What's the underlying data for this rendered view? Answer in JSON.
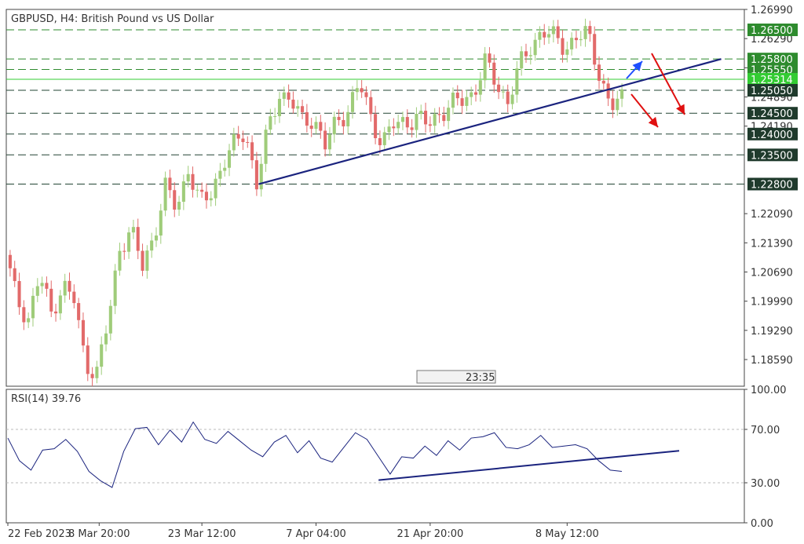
{
  "chart_data": {
    "type": "candlestick",
    "symbol_title": "GBPUSD, H4:  British Pound vs US Dollar",
    "price_axis": {
      "ylim": [
        1.1795,
        1.2699
      ],
      "tick_labels": [
        "1.26990",
        "1.26290",
        "1.25590",
        "1.24890",
        "1.24190",
        "1.22090",
        "1.21390",
        "1.20690",
        "1.19990",
        "1.19290",
        "1.18590"
      ]
    },
    "levels": [
      {
        "value": 1.265,
        "label": "1.26500",
        "style": "dashed",
        "color": "#2e8b2e",
        "tag_color": "#2e8b2e"
      },
      {
        "value": 1.258,
        "label": "1.25800",
        "style": "dashed",
        "color": "#2e8b2e",
        "tag_color": "#2e8b2e"
      },
      {
        "value": 1.2555,
        "label": "1.25550",
        "style": "dashed",
        "color": "#2e8b2e",
        "tag_color": "#2e8b2e"
      },
      {
        "value": 1.25314,
        "label": "1.25314",
        "style": "solid",
        "color": "#33cc33",
        "tag_color": "#33cc33"
      },
      {
        "value": 1.2505,
        "label": "1.25050",
        "style": "dashed",
        "color": "#224433",
        "tag_color": "#1f3a2c"
      },
      {
        "value": 1.245,
        "label": "1.24500",
        "style": "dashed",
        "color": "#224433",
        "tag_color": "#1f3a2c"
      },
      {
        "value": 1.24,
        "label": "1.24000",
        "style": "dashed",
        "color": "#224433",
        "tag_color": "#1f3a2c"
      },
      {
        "value": 1.235,
        "label": "1.23500",
        "style": "dashed",
        "color": "#224433",
        "tag_color": "#1f3a2c"
      },
      {
        "value": 1.228,
        "label": "1.22800",
        "style": "dashed",
        "color": "#224433",
        "tag_color": "#1f3a2c"
      }
    ],
    "time_axis": {
      "tick_labels": [
        "22 Feb 2023",
        "8 Mar 20:00",
        "23 Mar 12:00",
        "7 Apr 04:00",
        "21 Apr 20:00",
        "8 May 12:00"
      ]
    },
    "close_path": [
      {
        "t": "22 Feb 2023",
        "close": 1.211
      },
      {
        "t": "24 Feb 2023",
        "close": 1.2
      },
      {
        "t": "27 Feb 2023",
        "close": 1.196
      },
      {
        "t": "1 Mar 2023",
        "close": 1.206
      },
      {
        "t": "3 Mar 2023",
        "close": 1.197
      },
      {
        "t": "6 Mar 2023",
        "close": 1.204
      },
      {
        "t": "7 Mar 2023",
        "close": 1.2
      },
      {
        "t": "8 Mar 00:00",
        "close": 1.185
      },
      {
        "t": "8 Mar 20:00",
        "close": 1.183
      },
      {
        "t": "10 Mar 2023",
        "close": 1.195
      },
      {
        "t": "13 Mar 2023",
        "close": 1.213
      },
      {
        "t": "14 Mar 2023",
        "close": 1.217
      },
      {
        "t": "16 Mar 2023",
        "close": 1.208
      },
      {
        "t": "17 Mar 2023",
        "close": 1.216
      },
      {
        "t": "20 Mar 2023",
        "close": 1.227
      },
      {
        "t": "21 Mar 2023",
        "close": 1.222
      },
      {
        "t": "22 Mar 2023",
        "close": 1.232
      },
      {
        "t": "23 Mar 12:00",
        "close": 1.223
      },
      {
        "t": "24 Mar 2023",
        "close": 1.226
      },
      {
        "t": "27 Mar 2023",
        "close": 1.233
      },
      {
        "t": "29 Mar 2023",
        "close": 1.237
      },
      {
        "t": "30 Mar 2023",
        "close": 1.241
      },
      {
        "t": "31 Mar 2023",
        "close": 1.228
      },
      {
        "t": "3 Apr 2023",
        "close": 1.241
      },
      {
        "t": "4 Apr 2023",
        "close": 1.25
      },
      {
        "t": "5 Apr 2023",
        "close": 1.248
      },
      {
        "t": "6 Apr 2023",
        "close": 1.243
      },
      {
        "t": "7 Apr 04:00",
        "close": 1.244
      },
      {
        "t": "10 Apr 2023",
        "close": 1.237
      },
      {
        "t": "11 Apr 2023",
        "close": 1.243
      },
      {
        "t": "12 Apr 2023",
        "close": 1.246
      },
      {
        "t": "13 Apr 2023",
        "close": 1.252
      },
      {
        "t": "14 Apr 2023",
        "close": 1.244
      },
      {
        "t": "17 Apr 2023",
        "close": 1.238
      },
      {
        "t": "18 Apr 2023",
        "close": 1.242
      },
      {
        "t": "19 Apr 2023",
        "close": 1.243
      },
      {
        "t": "20 Apr 2023",
        "close": 1.244
      },
      {
        "t": "21 Apr 20:00",
        "close": 1.242
      },
      {
        "t": "24 Apr 2023",
        "close": 1.245
      },
      {
        "t": "25 Apr 2023",
        "close": 1.247
      },
      {
        "t": "26 Apr 2023",
        "close": 1.248
      },
      {
        "t": "27 Apr 2023",
        "close": 1.25
      },
      {
        "t": "28 Apr 2023",
        "close": 1.257
      },
      {
        "t": "1 May 2023",
        "close": 1.252
      },
      {
        "t": "2 May 2023",
        "close": 1.248
      },
      {
        "t": "3 May 2023",
        "close": 1.256
      },
      {
        "t": "4 May 2023",
        "close": 1.261
      },
      {
        "t": "5 May 2023",
        "close": 1.265
      },
      {
        "t": "8 May 00:00",
        "close": 1.263
      },
      {
        "t": "8 May 12:00",
        "close": 1.261
      },
      {
        "t": "9 May 2023",
        "close": 1.263
      },
      {
        "t": "10 May 2023",
        "close": 1.264
      },
      {
        "t": "11 May 2023",
        "close": 1.255
      },
      {
        "t": "12 May 2023",
        "close": 1.246
      },
      {
        "t": "12 May 16:00",
        "close": 1.2485
      }
    ],
    "trendline": {
      "start": {
        "t": "31 Mar 2023",
        "price": 1.228
      },
      "end": {
        "t": "15 May 2023",
        "price": 1.258
      },
      "color": "#1a237e"
    },
    "arrows": [
      {
        "direction": "up",
        "color": "#1e4fff"
      },
      {
        "direction": "down",
        "color": "#e01010"
      },
      {
        "direction": "down",
        "color": "#e01010"
      }
    ],
    "scroll_marker": "23:35",
    "rsi": {
      "label": "RSI(14) 39.76",
      "ylim": [
        0,
        100
      ],
      "tick_labels": [
        "100.00",
        "70.00",
        "30.00",
        "0.00"
      ],
      "levels": [
        70,
        30
      ],
      "values": [
        62,
        48,
        38,
        56,
        54,
        64,
        52,
        40,
        30,
        28,
        52,
        72,
        70,
        60,
        68,
        62,
        74,
        64,
        58,
        70,
        60,
        56,
        48,
        62,
        64,
        54,
        60,
        50,
        44,
        58,
        66,
        64,
        48,
        38,
        48,
        50,
        56,
        52,
        60,
        56,
        62,
        66,
        66,
        58,
        54,
        60,
        64,
        58,
        56,
        60,
        54,
        48,
        38,
        40
      ],
      "trendline_start": 32,
      "trendline_end": 54,
      "line_color": "#1a237e"
    }
  }
}
